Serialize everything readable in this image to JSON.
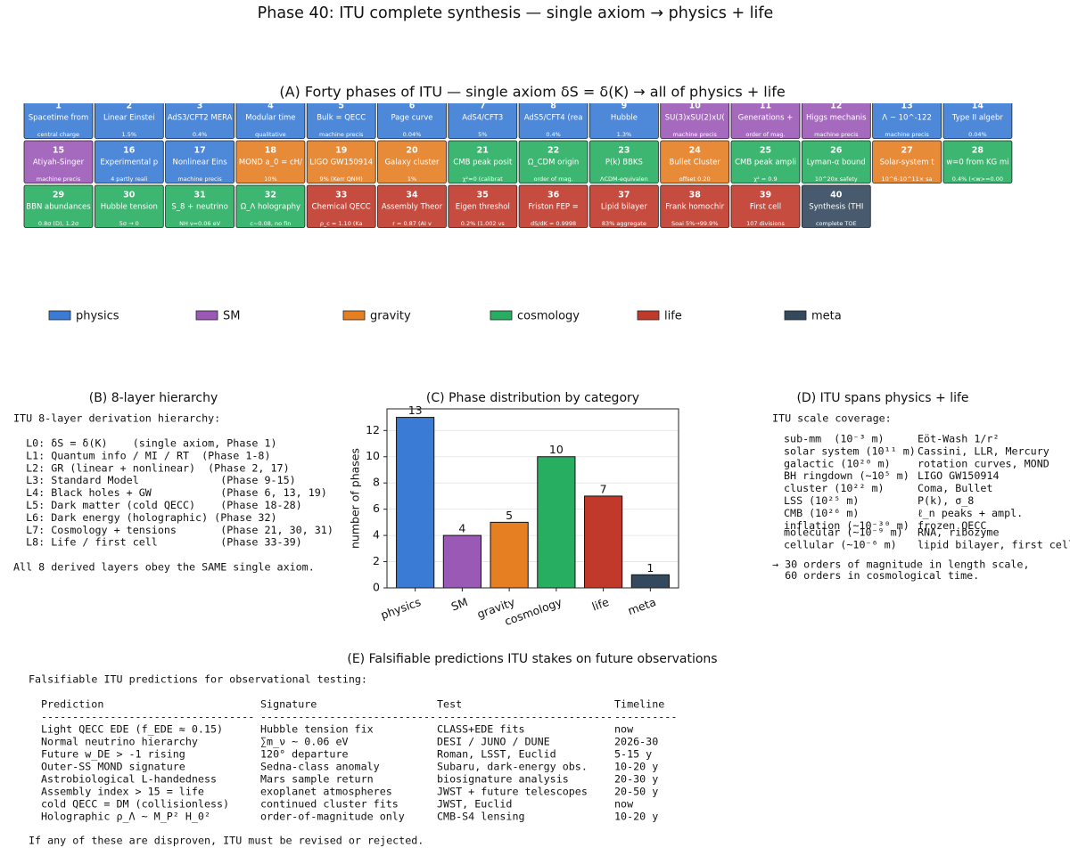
{
  "title": "Phase 40: ITU complete synthesis — single axiom → physics + life",
  "panel_a": {
    "title": "(A) Forty phases of ITU — single axiom δS = δ(K) → all of physics + life",
    "tiles": [
      {
        "number": 1,
        "label": "Spacetime from",
        "note": "central charge",
        "category": "physics"
      },
      {
        "number": 2,
        "label": "Linear Einstei",
        "note": "1.5%",
        "category": "physics"
      },
      {
        "number": 3,
        "label": "AdS3/CFT2 MERA",
        "note": "0.4%",
        "category": "physics"
      },
      {
        "number": 4,
        "label": "Modular time",
        "note": "qualitative",
        "category": "physics"
      },
      {
        "number": 5,
        "label": "Bulk = QECC",
        "note": "machine precis",
        "category": "physics"
      },
      {
        "number": 6,
        "label": "Page curve",
        "note": "0.04%",
        "category": "physics"
      },
      {
        "number": 7,
        "label": "AdS4/CFT3",
        "note": "5%",
        "category": "physics"
      },
      {
        "number": 8,
        "label": "AdS5/CFT4 (rea",
        "note": "0.4%",
        "category": "physics"
      },
      {
        "number": 9,
        "label": "Hubble",
        "note": "1.3%",
        "category": "physics"
      },
      {
        "number": 10,
        "label": "SU(3)xSU(2)xU(",
        "note": "machine precis",
        "category": "SM"
      },
      {
        "number": 11,
        "label": "Generations +",
        "note": "order of mag.",
        "category": "SM"
      },
      {
        "number": 12,
        "label": "Higgs mechanis",
        "note": "machine precis",
        "category": "SM"
      },
      {
        "number": 13,
        "label": "Λ ~ 10^-122",
        "note": "machine precis",
        "category": "physics"
      },
      {
        "number": 14,
        "label": "Type II algebr",
        "note": "0.04%",
        "category": "physics"
      },
      {
        "number": 15,
        "label": "Atiyah-Singer",
        "note": "machine precis",
        "category": "SM"
      },
      {
        "number": 16,
        "label": "Experimental p",
        "note": "4 partly reali",
        "category": "physics"
      },
      {
        "number": 17,
        "label": "Nonlinear Eins",
        "note": "machine precis",
        "category": "physics"
      },
      {
        "number": 18,
        "label": "MOND a_0 = cH/",
        "note": "10%",
        "category": "gravity"
      },
      {
        "number": 19,
        "label": "LIGO GW150914",
        "note": "9% (Kerr QNM)",
        "category": "gravity"
      },
      {
        "number": 20,
        "label": "Galaxy cluster",
        "note": "1%",
        "category": "gravity"
      },
      {
        "number": 21,
        "label": "CMB peak posit",
        "note": "χ²≈0 (calibrat",
        "category": "cosmology"
      },
      {
        "number": 22,
        "label": "Ω_CDM origin",
        "note": "order of mag.",
        "category": "cosmology"
      },
      {
        "number": 23,
        "label": "P(k) BBKS",
        "note": "ΛCDM-equivalen",
        "category": "cosmology"
      },
      {
        "number": 24,
        "label": "Bullet Cluster",
        "note": "offset 0.20",
        "category": "gravity"
      },
      {
        "number": 25,
        "label": "CMB peak ampli",
        "note": "χ² = 0.9",
        "category": "cosmology"
      },
      {
        "number": 26,
        "label": "Lyman-α bound",
        "note": "10^20x safety",
        "category": "cosmology"
      },
      {
        "number": 27,
        "label": "Solar-system t",
        "note": "10^6-10^11× sa",
        "category": "gravity"
      },
      {
        "number": 28,
        "label": "w=0 from KG mi",
        "note": "0.4% (<w>=0.00",
        "category": "cosmology"
      },
      {
        "number": 29,
        "label": "BBN abundances",
        "note": "0.8σ (D), 1.2σ",
        "category": "cosmology"
      },
      {
        "number": 30,
        "label": "Hubble tension",
        "note": "5σ → 0",
        "category": "cosmology"
      },
      {
        "number": 31,
        "label": "S_8 + neutrino",
        "note": "NH ν=0.06 eV",
        "category": "cosmology"
      },
      {
        "number": 32,
        "label": "Ω_Λ holography",
        "note": "c~0.08, no fin",
        "category": "cosmology"
      },
      {
        "number": 33,
        "label": "Chemical QECC",
        "note": "ρ_c = 1.10 (Ka",
        "category": "life"
      },
      {
        "number": 34,
        "label": "Assembly Theor",
        "note": "r = 0.87 (AI v",
        "category": "life"
      },
      {
        "number": 35,
        "label": "Eigen threshol",
        "note": "0.2% (1.002 vs",
        "category": "life"
      },
      {
        "number": 36,
        "label": "Friston FEP =",
        "note": "dS/dK = 0.9998",
        "category": "life"
      },
      {
        "number": 37,
        "label": "Lipid bilayer",
        "note": "83% aggregate",
        "category": "life"
      },
      {
        "number": 38,
        "label": "Frank homochir",
        "note": "Soai 5%→99.9%",
        "category": "life"
      },
      {
        "number": 39,
        "label": "First cell",
        "note": "107 divisions",
        "category": "life"
      },
      {
        "number": 40,
        "label": "Synthesis (THI",
        "note": "complete TOE",
        "category": "meta"
      }
    ]
  },
  "legend": [
    {
      "name": "physics",
      "color": "#3a7bd5"
    },
    {
      "name": "SM",
      "color": "#9b59b6"
    },
    {
      "name": "gravity",
      "color": "#e67e22"
    },
    {
      "name": "cosmology",
      "color": "#27ae60"
    },
    {
      "name": "life",
      "color": "#c0392b"
    },
    {
      "name": "meta",
      "color": "#34495e"
    }
  ],
  "panel_b": {
    "title": "(B) 8-layer hierarchy",
    "heading": "ITU 8-layer derivation hierarchy:",
    "lines": [
      "  L0: δS = δ(K)    (single axiom, Phase 1)",
      "  L1: Quantum info / MI / RT  (Phase 1-8)",
      "  L2: GR (linear + nonlinear)  (Phase 2, 17)",
      "  L3: Standard Model             (Phase 9-15)",
      "  L4: Black holes + GW           (Phase 6, 13, 19)",
      "  L5: Dark matter (cold QECC)    (Phase 18-28)",
      "  L6: Dark energy (holographic) (Phase 32)",
      "  L7: Cosmology + tensions       (Phase 21, 30, 31)",
      "  L8: Life / first cell          (Phase 33-39)"
    ],
    "footer": "All 8 derived layers obey the SAME single axiom."
  },
  "chart_data": {
    "type": "bar",
    "title": "(C) Phase distribution by category",
    "ylabel": "number of phases",
    "categories": [
      "physics",
      "SM",
      "gravity",
      "cosmology",
      "life",
      "meta"
    ],
    "values": [
      13,
      4,
      5,
      10,
      7,
      1
    ],
    "colors": [
      "#3a7bd5",
      "#9b59b6",
      "#e67e22",
      "#27ae60",
      "#c0392b",
      "#34495e"
    ],
    "ylim": [
      0,
      13.65
    ],
    "yticks": [
      0,
      2,
      4,
      6,
      8,
      10,
      12
    ],
    "grid": true
  },
  "panel_d": {
    "title": "(D) ITU spans physics + life",
    "heading": "ITU scale coverage:",
    "rows": [
      [
        "sub-mm  (10⁻³ m)",
        "Eöt-Wash 1/r²"
      ],
      [
        "solar system (10¹¹ m)",
        "Cassini, LLR, Mercury"
      ],
      [
        "galactic (10²⁰ m)",
        "rotation curves, MOND"
      ],
      [
        "BH ringdown (~10⁵ m)",
        "LIGO GW150914"
      ],
      [
        "cluster (10²² m)",
        "Coma, Bullet"
      ],
      [
        "LSS (10²⁵ m)",
        "P(k), σ_8"
      ],
      [
        "CMB (10²⁶ m)",
        "ℓ_n peaks + ampl."
      ],
      [
        "inflation (~10⁻³⁰ m)",
        "frozen QECC"
      ]
    ],
    "rows_life": [
      [
        "molecular (~10⁻⁹ m)",
        "RNA, ribozyme"
      ],
      [
        "cellular (~10⁻⁶ m)",
        "lipid bilayer, first cell"
      ]
    ],
    "footer": [
      "→ 30 orders of magnitude in length scale,",
      "  60 orders in cosmological time."
    ]
  },
  "panel_e": {
    "title": "(E) Falsifiable predictions ITU stakes on future observations",
    "heading": "Falsifiable ITU predictions for observational testing:",
    "header": [
      "Prediction",
      "Signature",
      "Test",
      "Timeline"
    ],
    "rule": [
      "----------------------------------",
      "----------------------------",
      "----------------------------",
      "----------"
    ],
    "rows": [
      [
        "Light QECC EDE (f_EDE ≈ 0.15)",
        "Hubble tension fix",
        "CLASS+EDE fits",
        "now"
      ],
      [
        "Normal neutrino hierarchy",
        "∑m_ν ~ 0.06 eV",
        "DESI / JUNO / DUNE",
        "2026-30"
      ],
      [
        "Future w_DE > -1 rising",
        "120° departure",
        "Roman, LSST, Euclid",
        "5-15 y"
      ],
      [
        "Outer-SS MOND signature",
        "Sedna-class anomaly",
        "Subaru, dark-energy obs.",
        "10-20 y"
      ],
      [
        "Astrobiological L-handedness",
        "Mars sample return",
        "biosignature analysis",
        "20-30 y"
      ],
      [
        "Assembly index > 15 = life",
        "exoplanet atmospheres",
        "JWST + future telescopes",
        "20-50 y"
      ],
      [
        "cold QECC = DM (collisionless)",
        "continued cluster fits",
        "JWST, Euclid",
        "now"
      ],
      [
        "Holographic ρ_Λ ~ M_P² H_0²",
        "order-of-magnitude only",
        "CMB-S4 lensing",
        "10-20 y"
      ]
    ],
    "footer": "If any of these are disproven, ITU must be revised or rejected."
  }
}
